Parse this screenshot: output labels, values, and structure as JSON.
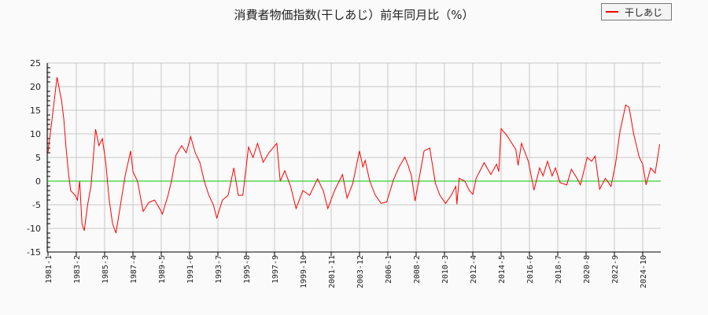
{
  "title": "消費者物価指数(干しあじ）前年同月比（%）",
  "legend": {
    "label": "干しあじ",
    "color": "#ff0000"
  },
  "colors": {
    "series": "#ff0000",
    "zero_line": "#00cc00",
    "grid": "#c8c8c8",
    "axis": "#000000",
    "background": "#fafafa"
  },
  "chart_data": {
    "type": "line",
    "title": "消費者物価指数(干しあじ）前年同月比（%）",
    "xlabel": "",
    "ylabel": "",
    "ylim": [
      -15,
      25
    ],
    "yticks": [
      25,
      20,
      15,
      10,
      5,
      0,
      -5,
      -10,
      -15
    ],
    "xticks": [
      "1981-1",
      "1983-2",
      "1985-3",
      "1987-4",
      "1989-5",
      "1991-6",
      "1993-7",
      "1995-8",
      "1997-9",
      "1999-10",
      "2001-11",
      "2003-12",
      "2006-1",
      "2008-2",
      "2010-3",
      "2012-4",
      "2014-5",
      "2016-6",
      "2018-7",
      "2020-8",
      "2022-9",
      "2024-10"
    ],
    "grid": true,
    "legend_position": "top-right",
    "series": [
      {
        "name": "干しあじ",
        "points": [
          [
            "1981-1",
            6
          ],
          [
            "1981-5",
            14
          ],
          [
            "1981-9",
            22
          ],
          [
            "1982-1",
            17
          ],
          [
            "1982-3",
            13
          ],
          [
            "1982-5",
            7
          ],
          [
            "1982-7",
            2
          ],
          [
            "1982-9",
            -2
          ],
          [
            "1983-1",
            -3
          ],
          [
            "1983-3",
            -4
          ],
          [
            "1983-5",
            0
          ],
          [
            "1983-7",
            -9
          ],
          [
            "1983-9",
            -10.5
          ],
          [
            "1983-12",
            -5
          ],
          [
            "1984-3",
            -1
          ],
          [
            "1984-7",
            11
          ],
          [
            "1984-10",
            7.5
          ],
          [
            "1985-1",
            9
          ],
          [
            "1985-4",
            4
          ],
          [
            "1985-7",
            -4
          ],
          [
            "1985-10",
            -9
          ],
          [
            "1986-1",
            -11
          ],
          [
            "1986-5",
            -5
          ],
          [
            "1986-9",
            1
          ],
          [
            "1987-2",
            6.4
          ],
          [
            "1987-4",
            2
          ],
          [
            "1987-8",
            0
          ],
          [
            "1988-1",
            -6.4
          ],
          [
            "1988-6",
            -4.5
          ],
          [
            "1988-11",
            -4
          ],
          [
            "1989-4",
            -6
          ],
          [
            "1989-6",
            -7
          ],
          [
            "1989-11",
            -3
          ],
          [
            "1990-2",
            0
          ],
          [
            "1990-6",
            5.5
          ],
          [
            "1990-11",
            7.5
          ],
          [
            "1991-3",
            6
          ],
          [
            "1991-7",
            9.4
          ],
          [
            "1991-11",
            6
          ],
          [
            "1992-3",
            4
          ],
          [
            "1992-7",
            0
          ],
          [
            "1992-11",
            -3
          ],
          [
            "1993-3",
            -5
          ],
          [
            "1993-6",
            -7.8
          ],
          [
            "1993-11",
            -4
          ],
          [
            "1994-4",
            -3
          ],
          [
            "1994-9",
            2.8
          ],
          [
            "1995-1",
            -3
          ],
          [
            "1995-5",
            -3
          ],
          [
            "1995-10",
            7.2
          ],
          [
            "1996-2",
            5
          ],
          [
            "1996-6",
            8
          ],
          [
            "1996-11",
            4
          ],
          [
            "1997-4",
            6
          ],
          [
            "1997-11",
            8
          ],
          [
            "1998-2",
            0
          ],
          [
            "1998-6",
            2.2
          ],
          [
            "1998-11",
            -1
          ],
          [
            "1999-4",
            -5.8
          ],
          [
            "1999-10",
            -2
          ],
          [
            "2000-4",
            -3
          ],
          [
            "2000-11",
            0.5
          ],
          [
            "2001-4",
            -2
          ],
          [
            "2001-8",
            -5.8
          ],
          [
            "2002-2",
            -2
          ],
          [
            "2002-9",
            1.4
          ],
          [
            "2003-1",
            -3.6
          ],
          [
            "2003-6",
            -0.5
          ],
          [
            "2003-12",
            6.4
          ],
          [
            "2004-3",
            3
          ],
          [
            "2004-5",
            4.4
          ],
          [
            "2004-9",
            0
          ],
          [
            "2005-2",
            -3
          ],
          [
            "2005-7",
            -4.7
          ],
          [
            "2005-12",
            -4.4
          ],
          [
            "2006-6",
            0.3
          ],
          [
            "2006-11",
            3
          ],
          [
            "2007-4",
            5.1
          ],
          [
            "2007-7",
            3.3
          ],
          [
            "2007-10",
            1
          ],
          [
            "2008-1",
            -4.2
          ],
          [
            "2008-5",
            1
          ],
          [
            "2008-9",
            6.4
          ],
          [
            "2009-2",
            7
          ],
          [
            "2009-7",
            -0.5
          ],
          [
            "2009-11",
            -3
          ],
          [
            "2010-4",
            -4.7
          ],
          [
            "2010-9",
            -3
          ],
          [
            "2011-1",
            -1.1
          ],
          [
            "2011-2",
            -4.9
          ],
          [
            "2011-4",
            0.6
          ],
          [
            "2011-9",
            0
          ],
          [
            "2012-1",
            -2
          ],
          [
            "2012-4",
            -2.8
          ],
          [
            "2012-7",
            0.6
          ],
          [
            "2013-2",
            3.9
          ],
          [
            "2013-8",
            1.4
          ],
          [
            "2014-1",
            3.6
          ],
          [
            "2014-3",
            2
          ],
          [
            "2014-5",
            11.1
          ],
          [
            "2014-10",
            9.7
          ],
          [
            "2015-6",
            6.7
          ],
          [
            "2015-8",
            3.3
          ],
          [
            "2015-11",
            8
          ],
          [
            "2016-5",
            4.2
          ],
          [
            "2016-10",
            -1.9
          ],
          [
            "2017-3",
            2.8
          ],
          [
            "2017-6",
            1.1
          ],
          [
            "2017-10",
            4.2
          ],
          [
            "2018-2",
            1.1
          ],
          [
            "2018-5",
            2.8
          ],
          [
            "2018-9",
            -0.3
          ],
          [
            "2019-3",
            -0.8
          ],
          [
            "2019-7",
            2.5
          ],
          [
            "2019-12",
            0.6
          ],
          [
            "2020-3",
            -0.8
          ],
          [
            "2020-9",
            5
          ],
          [
            "2021-1",
            4.2
          ],
          [
            "2021-4",
            5.3
          ],
          [
            "2021-8",
            -1.7
          ],
          [
            "2022-1",
            0.6
          ],
          [
            "2022-6",
            -1.1
          ],
          [
            "2022-10",
            3.6
          ],
          [
            "2023-2",
            10.6
          ],
          [
            "2023-7",
            16.1
          ],
          [
            "2023-10",
            15.6
          ],
          [
            "2024-2",
            10
          ],
          [
            "2024-7",
            5
          ],
          [
            "2024-10",
            3.6
          ],
          [
            "2025-1",
            -0.8
          ],
          [
            "2025-5",
            2.8
          ],
          [
            "2025-9",
            1.7
          ],
          [
            "2026-1",
            7.8
          ]
        ]
      }
    ]
  }
}
